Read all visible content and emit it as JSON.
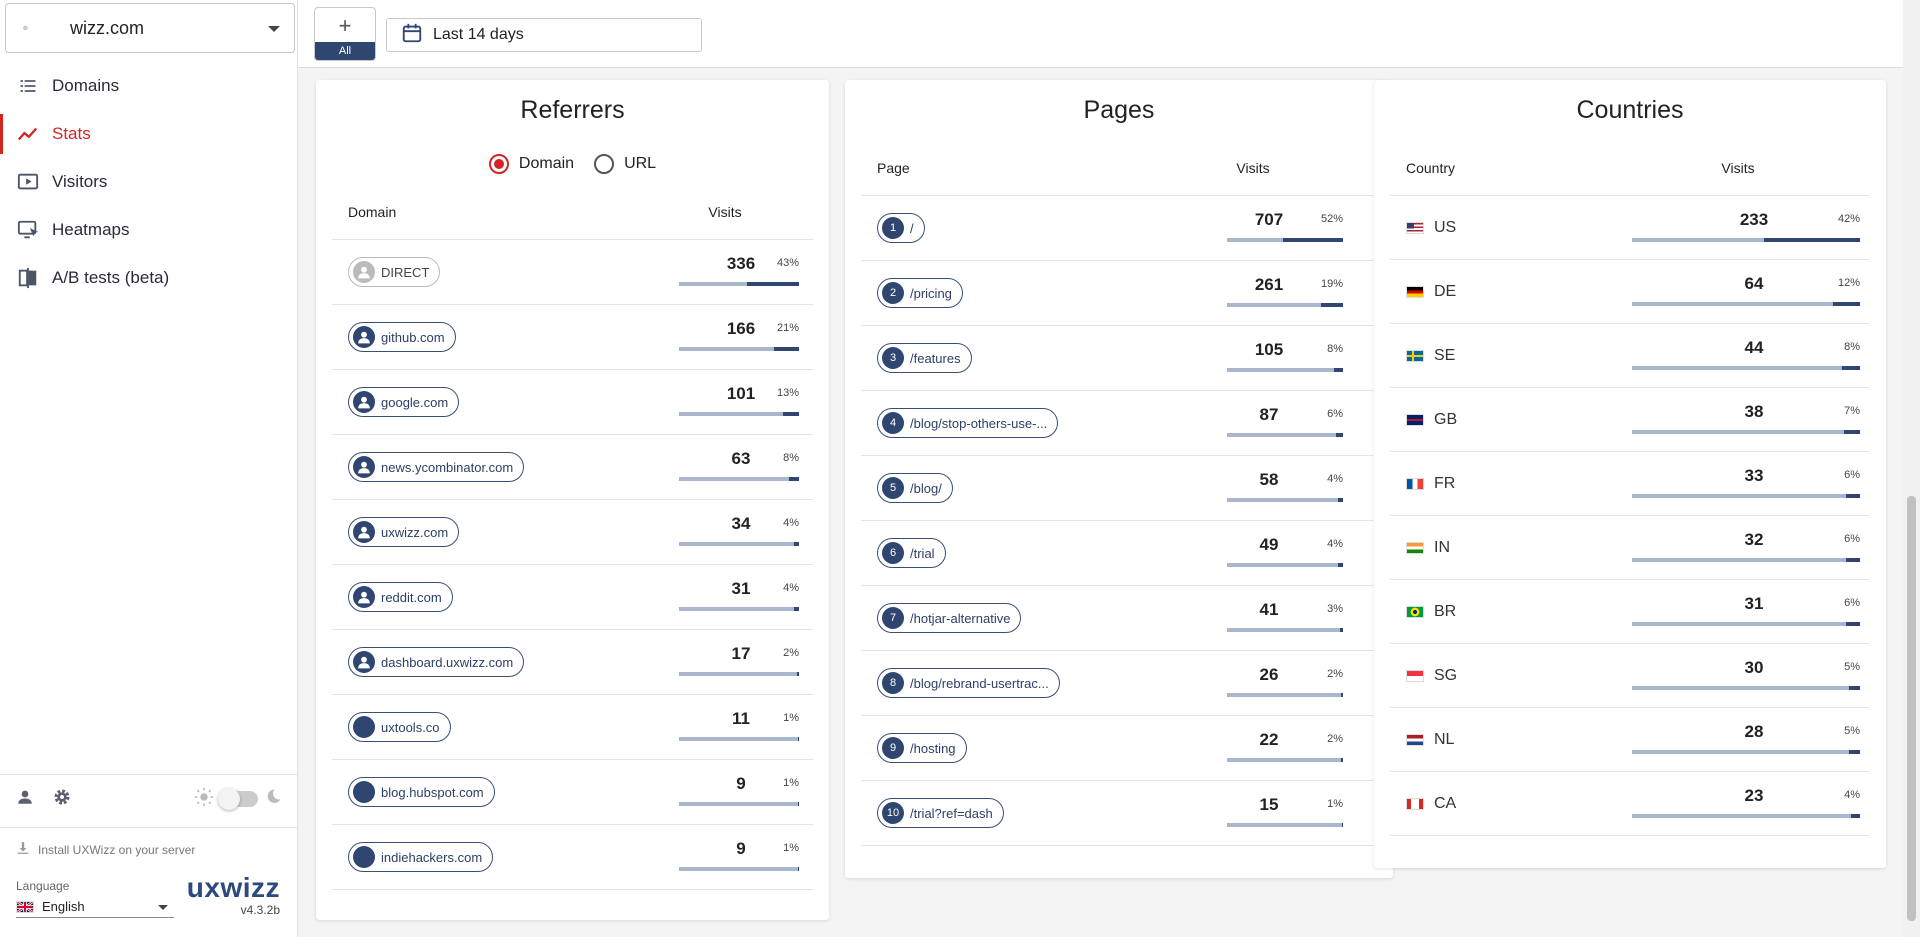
{
  "site": {
    "name": "wizz.com"
  },
  "nav": [
    {
      "label": "Domains",
      "icon": "list-icon",
      "active": false
    },
    {
      "label": "Stats",
      "icon": "chart-line-icon",
      "active": true
    },
    {
      "label": "Visitors",
      "icon": "play-screen-icon",
      "active": false
    },
    {
      "label": "Heatmaps",
      "icon": "monitor-cursor-icon",
      "active": false
    },
    {
      "label": "A/B tests (beta)",
      "icon": "ab-test-icon",
      "active": false
    }
  ],
  "sidebar_bottom": {
    "install_label": "Install UXWizz on your server",
    "language_label": "Language",
    "language_value": "English",
    "brand": "uxwizz",
    "version": "v4.3.2b"
  },
  "toolbar": {
    "add_label": "+",
    "all_label": "All",
    "date_range": "Last 14 days"
  },
  "referrers": {
    "title": "Referrers",
    "radio_options": [
      {
        "label": "Domain",
        "selected": true
      },
      {
        "label": "URL",
        "selected": false
      }
    ],
    "col_name": "Domain",
    "col_visits": "Visits",
    "rows": [
      {
        "name": "DIRECT",
        "visits": "336",
        "pct": "43%",
        "share": 0.43,
        "direct": true
      },
      {
        "name": "github.com",
        "visits": "166",
        "pct": "21%",
        "share": 0.21
      },
      {
        "name": "google.com",
        "visits": "101",
        "pct": "13%",
        "share": 0.13
      },
      {
        "name": "news.ycombinator.com",
        "visits": "63",
        "pct": "8%",
        "share": 0.08
      },
      {
        "name": "uxwizz.com",
        "visits": "34",
        "pct": "4%",
        "share": 0.04
      },
      {
        "name": "reddit.com",
        "visits": "31",
        "pct": "4%",
        "share": 0.04
      },
      {
        "name": "dashboard.uxwizz.com",
        "visits": "17",
        "pct": "2%",
        "share": 0.02
      },
      {
        "name": "uxtools.co",
        "visits": "11",
        "pct": "1%",
        "share": 0.01
      },
      {
        "name": "blog.hubspot.com",
        "visits": "9",
        "pct": "1%",
        "share": 0.01
      },
      {
        "name": "indiehackers.com",
        "visits": "9",
        "pct": "1%",
        "share": 0.01
      }
    ]
  },
  "pages": {
    "title": "Pages",
    "col_name": "Page",
    "col_visits": "Visits",
    "rows": [
      {
        "rank": "1",
        "name": "/",
        "visits": "707",
        "pct": "52%",
        "share": 0.52
      },
      {
        "rank": "2",
        "name": "/pricing",
        "visits": "261",
        "pct": "19%",
        "share": 0.19
      },
      {
        "rank": "3",
        "name": "/features",
        "visits": "105",
        "pct": "8%",
        "share": 0.08
      },
      {
        "rank": "4",
        "name": "/blog/stop-others-use-...",
        "visits": "87",
        "pct": "6%",
        "share": 0.06
      },
      {
        "rank": "5",
        "name": "/blog/",
        "visits": "58",
        "pct": "4%",
        "share": 0.04
      },
      {
        "rank": "6",
        "name": "/trial",
        "visits": "49",
        "pct": "4%",
        "share": 0.04
      },
      {
        "rank": "7",
        "name": "/hotjar-alternative",
        "visits": "41",
        "pct": "3%",
        "share": 0.03
      },
      {
        "rank": "8",
        "name": "/blog/rebrand-usertrac...",
        "visits": "26",
        "pct": "2%",
        "share": 0.02
      },
      {
        "rank": "9",
        "name": "/hosting",
        "visits": "22",
        "pct": "2%",
        "share": 0.02
      },
      {
        "rank": "10",
        "name": "/trial?ref=dash",
        "visits": "15",
        "pct": "1%",
        "share": 0.01
      }
    ]
  },
  "countries": {
    "title": "Countries",
    "col_name": "Country",
    "col_visits": "Visits",
    "rows": [
      {
        "code": "US",
        "visits": "233",
        "pct": "42%",
        "share": 0.42,
        "flag": [
          "#b22234",
          "#ffffff",
          "#3c3b6e"
        ]
      },
      {
        "code": "DE",
        "visits": "64",
        "pct": "12%",
        "share": 0.12,
        "flag": [
          "#000000",
          "#dd0000",
          "#ffce00"
        ]
      },
      {
        "code": "SE",
        "visits": "44",
        "pct": "8%",
        "share": 0.08,
        "flag": [
          "#006aa7",
          "#fecc00",
          "#006aa7"
        ]
      },
      {
        "code": "GB",
        "visits": "38",
        "pct": "7%",
        "share": 0.07,
        "flag": [
          "#012169",
          "#c8102e",
          "#012169"
        ]
      },
      {
        "code": "FR",
        "visits": "33",
        "pct": "6%",
        "share": 0.06,
        "flag": [
          "#0055a4",
          "#ffffff",
          "#ef4135"
        ]
      },
      {
        "code": "IN",
        "visits": "32",
        "pct": "6%",
        "share": 0.06,
        "flag": [
          "#ff9933",
          "#ffffff",
          "#138808"
        ]
      },
      {
        "code": "BR",
        "visits": "31",
        "pct": "6%",
        "share": 0.06,
        "flag": [
          "#009c3b",
          "#ffdf00",
          "#009c3b"
        ]
      },
      {
        "code": "SG",
        "visits": "30",
        "pct": "5%",
        "share": 0.05,
        "flag": [
          "#ef3340",
          "#ffffff",
          "#ffffff"
        ]
      },
      {
        "code": "NL",
        "visits": "28",
        "pct": "5%",
        "share": 0.05,
        "flag": [
          "#ae1c28",
          "#ffffff",
          "#21468b"
        ]
      },
      {
        "code": "CA",
        "visits": "23",
        "pct": "4%",
        "share": 0.04,
        "flag": [
          "#d52b1e",
          "#ffffff",
          "#d52b1e"
        ]
      }
    ]
  }
}
